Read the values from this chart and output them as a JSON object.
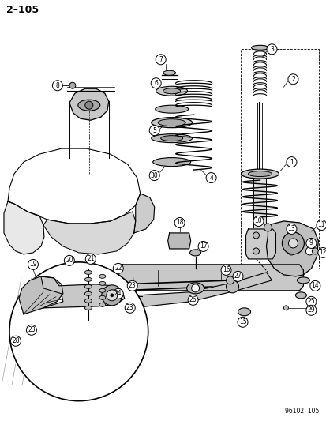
{
  "page_number": "2–105",
  "watermark": "96102  105",
  "background_color": "#ffffff",
  "line_color": "#000000",
  "fig_width": 4.14,
  "fig_height": 5.33,
  "dpi": 100,
  "lw": 0.7
}
